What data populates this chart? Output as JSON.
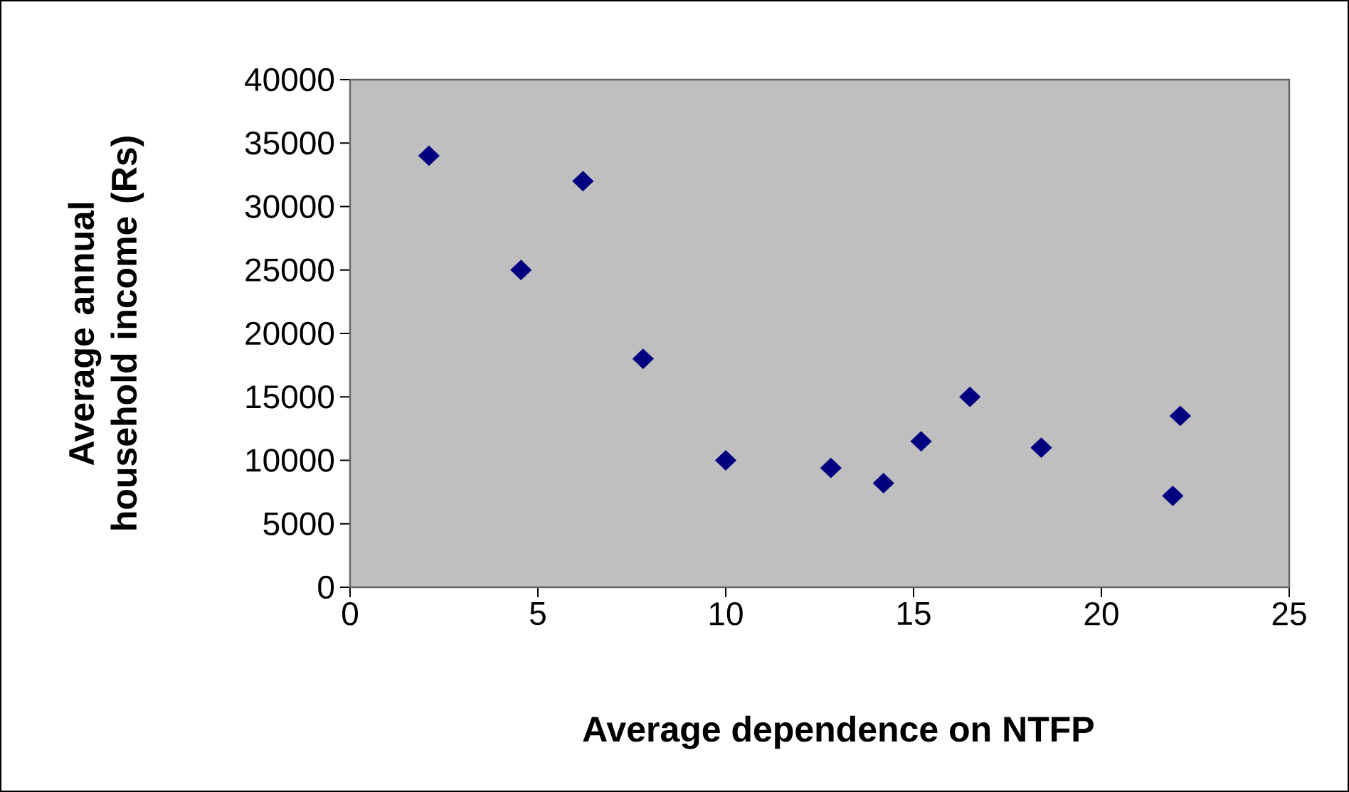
{
  "chart_data": {
    "type": "scatter",
    "xlabel": "Average dependence on NTFP",
    "ylabel": "Average annual household income (Rs)",
    "x": [
      2.1,
      4.55,
      6.2,
      7.8,
      10,
      12.8,
      14.2,
      15.2,
      16.5,
      18.4,
      21.9,
      22.1
    ],
    "series": [
      {
        "color": "#000080",
        "values": [
          34000,
          25000,
          32000,
          18000,
          10000,
          9400,
          8200,
          11500,
          15000,
          11000,
          7200,
          13500
        ]
      }
    ],
    "xlim": [
      0,
      25
    ],
    "xticks": [
      0,
      5,
      10,
      15,
      20,
      25
    ],
    "ylim": [
      0,
      40000
    ],
    "yticks": [
      0,
      5000,
      10000,
      15000,
      20000,
      25000,
      30000,
      35000,
      40000
    ],
    "marker": "diamond"
  }
}
